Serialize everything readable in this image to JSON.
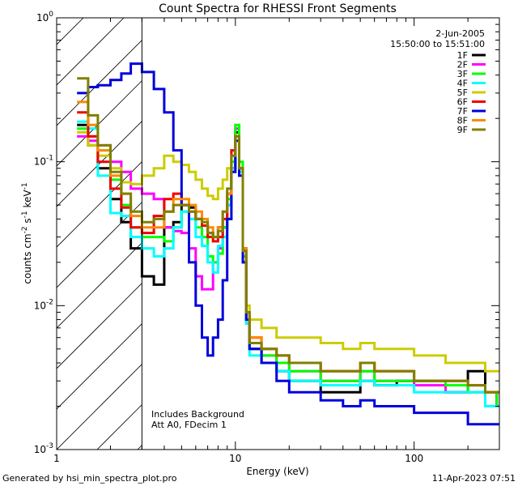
{
  "chart_data": {
    "type": "line",
    "title": "Count Spectra for RHESSI Front Segments",
    "xlabel": "Energy (keV)",
    "ylabel": "counts cm",
    "ylabel_sup1": "-2",
    "ylabel_mid": " s",
    "ylabel_sup2": "-1",
    "ylabel_end": " keV",
    "ylabel_sup3": "-1",
    "x_scale": "log",
    "y_scale": "log",
    "xlim": [
      1,
      300
    ],
    "ylim": [
      0.001,
      1
    ],
    "x_ticks": [
      {
        "v": 1,
        "label": "1"
      },
      {
        "v": 10,
        "label": "10"
      },
      {
        "v": 100,
        "label": "100"
      }
    ],
    "y_ticks": [
      {
        "v": 1,
        "base": "10",
        "exp": "0"
      },
      {
        "v": 0.1,
        "base": "10",
        "exp": "-1"
      },
      {
        "v": 0.01,
        "base": "10",
        "exp": "-2"
      },
      {
        "v": 0.001,
        "base": "10",
        "exp": "-3"
      }
    ],
    "date": "2-Jun-2005",
    "time_range": "15:50:00 to 15:51:00",
    "hatched_region_upper_keV": 3.0,
    "annotations": [
      "Includes Background",
      "Att A0, FDecim 1"
    ],
    "legend_position": "top-right",
    "series": [
      {
        "name": "1F",
        "color": "#000000",
        "x": [
          1.3,
          1.5,
          1.7,
          2.0,
          2.3,
          2.6,
          3.0,
          3.5,
          4.0,
          4.5,
          5.0,
          5.5,
          6.0,
          6.5,
          7.0,
          7.5,
          8.0,
          8.5,
          9.0,
          9.5,
          10.0,
          10.5,
          11.0,
          11.5,
          12.0,
          14.0,
          17.0,
          20.0,
          25.0,
          30.0,
          40.0,
          50.0,
          60.0,
          80.0,
          100.0,
          150.0,
          200.0,
          250.0,
          290.0
        ],
        "y": [
          0.18,
          0.13,
          0.09,
          0.055,
          0.038,
          0.025,
          0.016,
          0.014,
          0.035,
          0.038,
          0.05,
          0.048,
          0.04,
          0.036,
          0.032,
          0.03,
          0.035,
          0.035,
          0.05,
          0.09,
          0.16,
          0.09,
          0.02,
          0.008,
          0.005,
          0.004,
          0.0035,
          0.003,
          0.003,
          0.0025,
          0.0025,
          0.003,
          0.0028,
          0.003,
          0.003,
          0.0025,
          0.0035,
          0.002,
          0.0025
        ]
      },
      {
        "name": "2F",
        "color": "#ff00ff",
        "x": [
          1.3,
          1.5,
          1.7,
          2.0,
          2.3,
          2.6,
          3.0,
          3.5,
          4.0,
          4.5,
          5.0,
          5.5,
          6.0,
          6.5,
          7.0,
          7.5,
          8.0,
          8.5,
          9.0,
          9.5,
          10.0,
          10.5,
          11.0,
          11.5,
          12.0,
          14.0,
          17.0,
          20.0,
          25.0,
          30.0,
          40.0,
          50.0,
          60.0,
          80.0,
          100.0,
          150.0,
          200.0,
          250.0,
          290.0
        ],
        "y": [
          0.15,
          0.14,
          0.13,
          0.1,
          0.085,
          0.065,
          0.06,
          0.055,
          0.035,
          0.033,
          0.032,
          0.025,
          0.016,
          0.013,
          0.013,
          0.02,
          0.025,
          0.035,
          0.05,
          0.09,
          0.17,
          0.09,
          0.025,
          0.008,
          0.005,
          0.0045,
          0.004,
          0.0035,
          0.0035,
          0.003,
          0.003,
          0.0035,
          0.003,
          0.003,
          0.0028,
          0.0025,
          0.0025,
          0.0025,
          0.002
        ]
      },
      {
        "name": "3F",
        "color": "#00ff00",
        "x": [
          1.3,
          1.5,
          1.7,
          2.0,
          2.3,
          2.6,
          3.0,
          3.5,
          4.0,
          4.5,
          5.0,
          5.5,
          6.0,
          6.5,
          7.0,
          7.5,
          8.0,
          8.5,
          9.0,
          9.5,
          10.0,
          10.5,
          11.0,
          11.5,
          12.0,
          14.0,
          17.0,
          20.0,
          25.0,
          30.0,
          40.0,
          50.0,
          60.0,
          80.0,
          100.0,
          150.0,
          200.0,
          250.0,
          290.0
        ],
        "y": [
          0.17,
          0.15,
          0.12,
          0.075,
          0.05,
          0.035,
          0.03,
          0.03,
          0.028,
          0.035,
          0.045,
          0.04,
          0.035,
          0.03,
          0.022,
          0.02,
          0.023,
          0.035,
          0.055,
          0.1,
          0.18,
          0.1,
          0.022,
          0.008,
          0.005,
          0.0045,
          0.004,
          0.0035,
          0.0035,
          0.003,
          0.003,
          0.0035,
          0.003,
          0.003,
          0.003,
          0.0028,
          0.0025,
          0.0025,
          0.002
        ]
      },
      {
        "name": "4F",
        "color": "#00ffff",
        "x": [
          1.3,
          1.5,
          1.7,
          2.0,
          2.3,
          2.6,
          3.0,
          3.5,
          4.0,
          4.5,
          5.0,
          5.5,
          6.0,
          6.5,
          7.0,
          7.5,
          8.0,
          8.5,
          9.0,
          9.5,
          10.0,
          10.5,
          11.0,
          11.5,
          12.0,
          14.0,
          17.0,
          20.0,
          25.0,
          30.0,
          40.0,
          50.0,
          60.0,
          80.0,
          100.0,
          150.0,
          200.0,
          250.0,
          290.0
        ],
        "y": [
          0.19,
          0.17,
          0.08,
          0.044,
          0.042,
          0.03,
          0.025,
          0.022,
          0.025,
          0.035,
          0.045,
          0.04,
          0.03,
          0.026,
          0.02,
          0.017,
          0.026,
          0.03,
          0.05,
          0.09,
          0.15,
          0.085,
          0.02,
          0.0075,
          0.0045,
          0.004,
          0.0035,
          0.003,
          0.003,
          0.0028,
          0.0028,
          0.003,
          0.0028,
          0.0028,
          0.0025,
          0.0025,
          0.0025,
          0.002,
          0.002
        ]
      },
      {
        "name": "5F",
        "color": "#cccc00",
        "x": [
          1.3,
          1.5,
          1.7,
          2.0,
          2.3,
          2.6,
          3.0,
          3.5,
          4.0,
          4.5,
          5.0,
          5.5,
          6.0,
          6.5,
          7.0,
          7.5,
          8.0,
          8.5,
          9.0,
          9.5,
          10.0,
          10.5,
          11.0,
          11.5,
          12.0,
          14.0,
          17.0,
          20.0,
          25.0,
          30.0,
          40.0,
          50.0,
          60.0,
          80.0,
          100.0,
          150.0,
          200.0,
          250.0,
          290.0
        ],
        "y": [
          0.16,
          0.13,
          0.11,
          0.09,
          0.072,
          0.07,
          0.08,
          0.09,
          0.11,
          0.1,
          0.095,
          0.085,
          0.075,
          0.065,
          0.058,
          0.055,
          0.065,
          0.075,
          0.09,
          0.11,
          0.15,
          0.09,
          0.025,
          0.01,
          0.008,
          0.007,
          0.006,
          0.006,
          0.006,
          0.0055,
          0.005,
          0.0055,
          0.005,
          0.005,
          0.0045,
          0.004,
          0.004,
          0.0035,
          0.0035
        ]
      },
      {
        "name": "6F",
        "color": "#ee0000",
        "x": [
          1.3,
          1.5,
          1.7,
          2.0,
          2.3,
          2.6,
          3.0,
          3.5,
          4.0,
          4.5,
          5.0,
          5.5,
          6.0,
          6.5,
          7.0,
          7.5,
          8.0,
          8.5,
          9.0,
          9.5,
          10.0,
          10.5,
          11.0,
          11.5,
          12.0,
          14.0,
          17.0,
          20.0,
          25.0,
          30.0,
          40.0,
          50.0,
          60.0,
          80.0,
          100.0,
          150.0,
          200.0,
          250.0,
          290.0
        ],
        "y": [
          0.22,
          0.15,
          0.1,
          0.065,
          0.048,
          0.035,
          0.032,
          0.042,
          0.055,
          0.06,
          0.05,
          0.045,
          0.04,
          0.036,
          0.03,
          0.028,
          0.03,
          0.04,
          0.06,
          0.12,
          0.15,
          0.09,
          0.025,
          0.009,
          0.006,
          0.005,
          0.0045,
          0.004,
          0.004,
          0.0035,
          0.0035,
          0.004,
          0.0035,
          0.0035,
          0.003,
          0.003,
          0.0028,
          0.0025,
          0.0025
        ]
      },
      {
        "name": "7F",
        "color": "#0000dd",
        "x": [
          1.3,
          1.5,
          1.7,
          2.0,
          2.3,
          2.6,
          3.0,
          3.5,
          4.0,
          4.5,
          5.0,
          5.5,
          6.0,
          6.5,
          7.0,
          7.5,
          8.0,
          8.5,
          9.0,
          9.5,
          10.0,
          10.5,
          11.0,
          11.5,
          12.0,
          14.0,
          17.0,
          20.0,
          25.0,
          30.0,
          40.0,
          50.0,
          60.0,
          80.0,
          100.0,
          150.0,
          200.0,
          250.0,
          290.0
        ],
        "y": [
          0.3,
          0.33,
          0.34,
          0.37,
          0.41,
          0.48,
          0.42,
          0.32,
          0.22,
          0.12,
          0.05,
          0.02,
          0.01,
          0.006,
          0.0045,
          0.006,
          0.008,
          0.015,
          0.04,
          0.085,
          0.14,
          0.08,
          0.02,
          0.008,
          0.005,
          0.004,
          0.003,
          0.0025,
          0.0025,
          0.0022,
          0.002,
          0.0022,
          0.002,
          0.002,
          0.0018,
          0.0018,
          0.0015,
          0.0015,
          0.0015
        ]
      },
      {
        "name": "8F",
        "color": "#ff8800",
        "x": [
          1.3,
          1.5,
          1.7,
          2.0,
          2.3,
          2.6,
          3.0,
          3.5,
          4.0,
          4.5,
          5.0,
          5.5,
          6.0,
          6.5,
          7.0,
          7.5,
          8.0,
          8.5,
          9.0,
          9.5,
          10.0,
          10.5,
          11.0,
          11.5,
          12.0,
          14.0,
          17.0,
          20.0,
          25.0,
          30.0,
          40.0,
          50.0,
          60.0,
          80.0,
          100.0,
          150.0,
          200.0,
          250.0,
          290.0
        ],
        "y": [
          0.26,
          0.18,
          0.12,
          0.08,
          0.06,
          0.042,
          0.035,
          0.035,
          0.045,
          0.055,
          0.055,
          0.05,
          0.045,
          0.04,
          0.035,
          0.03,
          0.035,
          0.045,
          0.06,
          0.11,
          0.15,
          0.09,
          0.025,
          0.009,
          0.006,
          0.005,
          0.0045,
          0.004,
          0.004,
          0.0035,
          0.0035,
          0.004,
          0.0035,
          0.0035,
          0.003,
          0.003,
          0.0028,
          0.0025,
          0.0025
        ]
      },
      {
        "name": "9F",
        "color": "#808000",
        "x": [
          1.3,
          1.5,
          1.7,
          2.0,
          2.3,
          2.6,
          3.0,
          3.5,
          4.0,
          4.5,
          5.0,
          5.5,
          6.0,
          6.5,
          7.0,
          7.5,
          8.0,
          8.5,
          9.0,
          9.5,
          10.0,
          10.5,
          11.0,
          11.5,
          12.0,
          14.0,
          17.0,
          20.0,
          25.0,
          30.0,
          40.0,
          50.0,
          60.0,
          80.0,
          100.0,
          150.0,
          200.0,
          250.0,
          290.0
        ],
        "y": [
          0.38,
          0.21,
          0.13,
          0.085,
          0.06,
          0.045,
          0.038,
          0.04,
          0.045,
          0.05,
          0.05,
          0.045,
          0.04,
          0.038,
          0.032,
          0.03,
          0.033,
          0.045,
          0.065,
          0.11,
          0.15,
          0.09,
          0.024,
          0.009,
          0.0055,
          0.005,
          0.0045,
          0.004,
          0.004,
          0.0035,
          0.0035,
          0.004,
          0.0035,
          0.0035,
          0.003,
          0.003,
          0.0028,
          0.0025,
          0.0025
        ]
      }
    ]
  },
  "footer": {
    "generated_by": "Generated by hsi_min_spectra_plot.pro",
    "timestamp": "11-Apr-2023 07:51"
  }
}
